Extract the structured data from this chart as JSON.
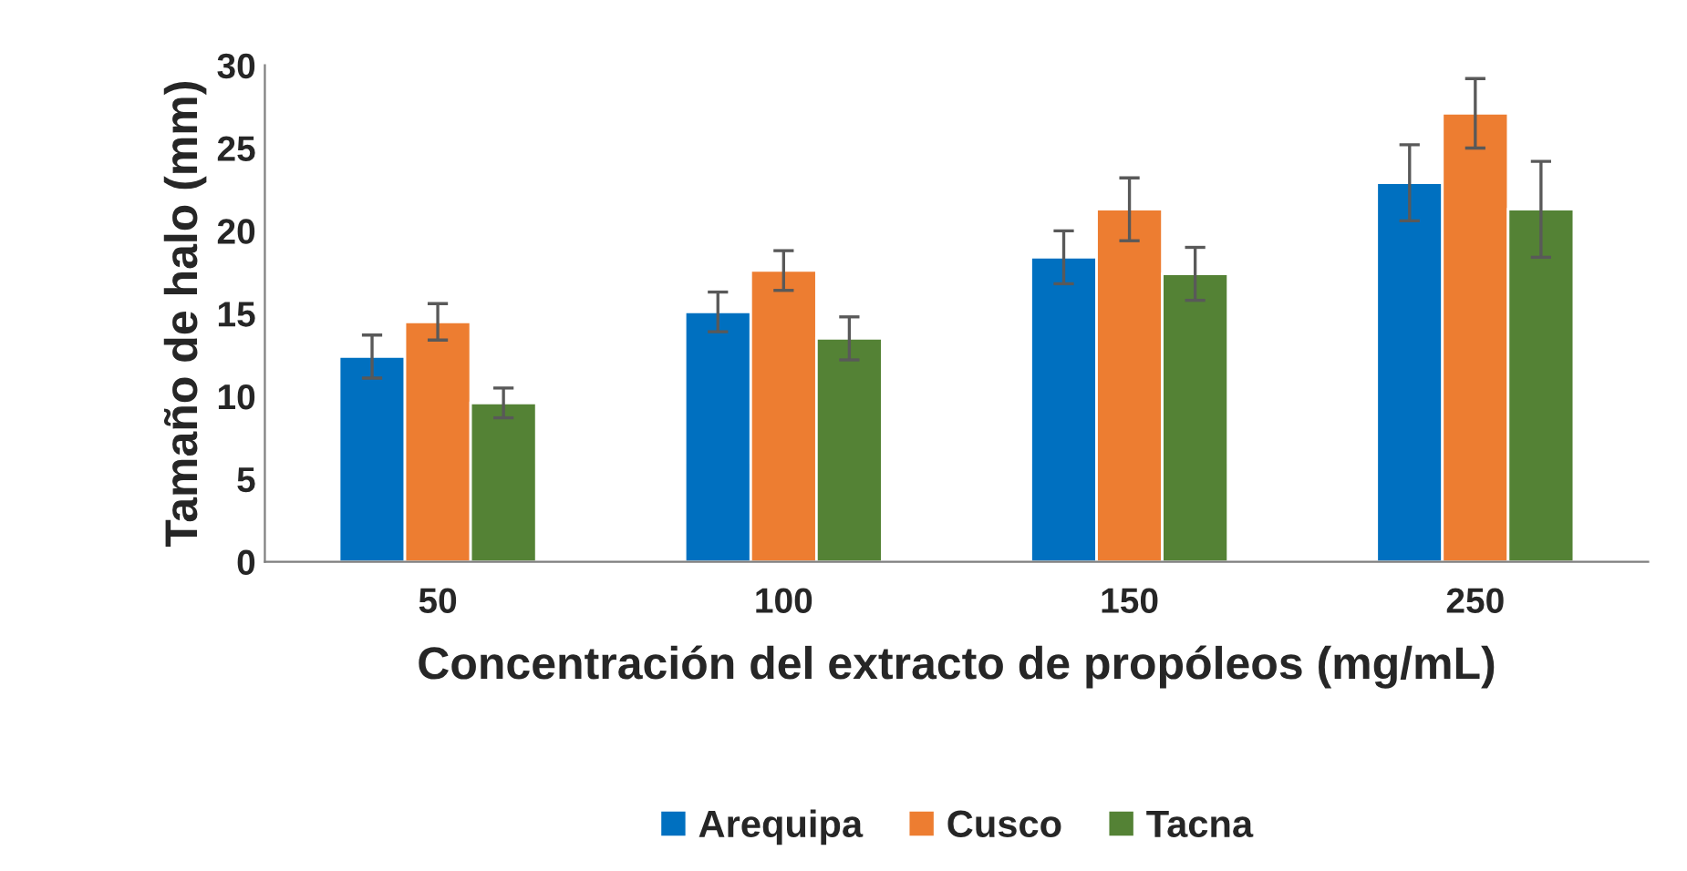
{
  "chart_data": {
    "type": "bar",
    "xlabel": "Concentración del extracto de propóleos (mg/mL)",
    "ylabel": "Tamaño de halo (mm)",
    "categories": [
      "50",
      "100",
      "150",
      "250"
    ],
    "series": [
      {
        "name": "Arequipa",
        "color": "#0070c0",
        "values": [
          12.4,
          15.1,
          18.4,
          22.9
        ],
        "errors": [
          1.3,
          1.2,
          1.6,
          2.3
        ]
      },
      {
        "name": "Cusco",
        "color": "#ed7d31",
        "values": [
          14.5,
          17.6,
          21.3,
          27.1
        ],
        "errors": [
          1.1,
          1.2,
          1.9,
          2.1
        ]
      },
      {
        "name": "Tacna",
        "color": "#548235",
        "values": [
          9.6,
          13.5,
          17.4,
          21.3
        ],
        "errors": [
          0.9,
          1.3,
          1.6,
          2.9
        ]
      }
    ],
    "ylim": [
      0,
      30
    ],
    "yticks": [
      0,
      5,
      10,
      15,
      20,
      25,
      30
    ],
    "grid": false,
    "legend": "bottom"
  }
}
